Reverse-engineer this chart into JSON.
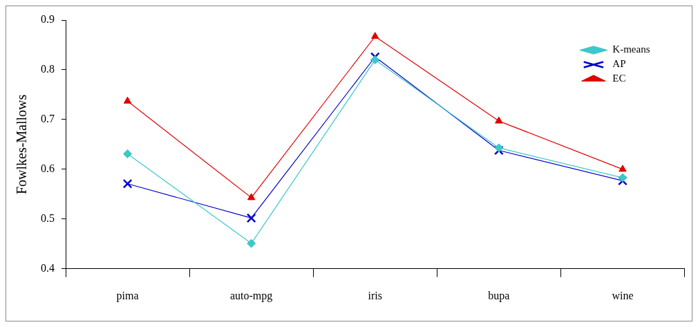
{
  "chart_data": {
    "type": "line",
    "ylabel": "Fowlkes-Mallows",
    "categories": [
      "pima",
      "auto-mpg",
      "iris",
      "bupa",
      "wine"
    ],
    "series": [
      {
        "name": "K-means",
        "color": "#3cc8c8",
        "marker": "diamond",
        "values": [
          0.631,
          0.451,
          0.82,
          0.643,
          0.583
        ]
      },
      {
        "name": "AP",
        "color": "#0000cc",
        "marker": "cross",
        "values": [
          0.571,
          0.502,
          0.826,
          0.638,
          0.577
        ]
      },
      {
        "name": "EC",
        "color": "#e00000",
        "marker": "triangle",
        "values": [
          0.737,
          0.543,
          0.867,
          0.697,
          0.6
        ]
      }
    ],
    "ylim": [
      0.4,
      0.9
    ],
    "yticks": [
      0.4,
      0.5,
      0.6,
      0.7,
      0.8,
      0.9
    ],
    "grid": false,
    "legend": "top right"
  }
}
